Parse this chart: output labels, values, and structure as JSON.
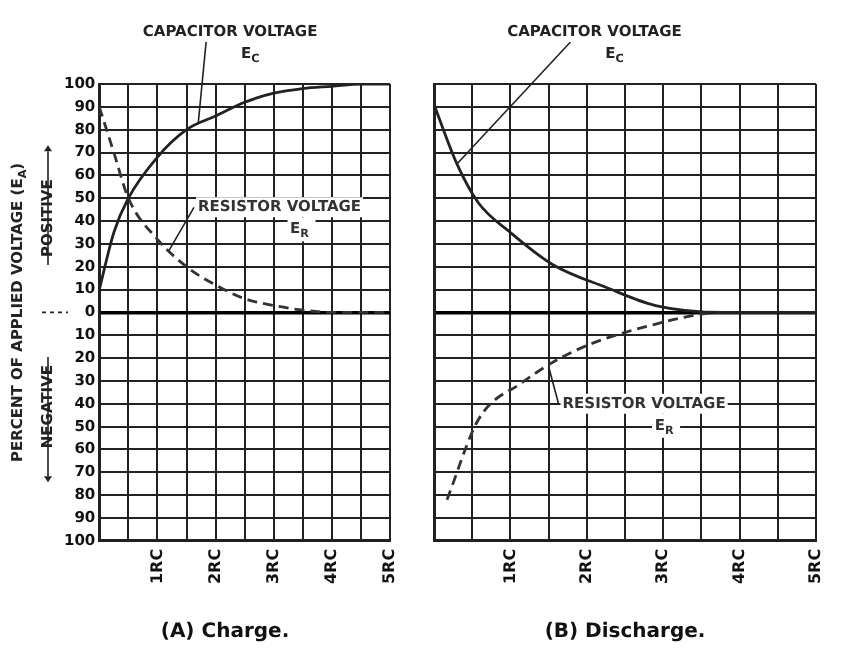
{
  "chart_data": [
    {
      "type": "line",
      "title": "(A) Charge.",
      "ylabel": "PERCENT OF APPLIED VOLTAGE (E$_{A}$)",
      "annotations": [
        "POSITIVE",
        "NEGATIVE"
      ],
      "x": [
        0,
        0.25,
        0.5,
        1,
        1.5,
        2,
        2.5,
        3,
        3.5,
        4,
        4.5,
        5
      ],
      "series": [
        {
          "name": "CAPACITOR VOLTAGE E$_{C}$",
          "color": "#222222",
          "line_style": "solid",
          "values": [
            10,
            35,
            50,
            68,
            80,
            86,
            92,
            96,
            98,
            99,
            100,
            100
          ]
        },
        {
          "name": "RESISTOR VOLTAGE E$_{R}$",
          "color": "#333333",
          "line_style": "dashed",
          "values": [
            90,
            70,
            50,
            32,
            20,
            12,
            6,
            3,
            1,
            0,
            0,
            0
          ]
        }
      ],
      "xlim": [
        0,
        5
      ],
      "xticks": [
        {
          "value": 0,
          "label": null
        },
        {
          "value": 0.5,
          "label": null
        },
        {
          "value": 1,
          "label": "1RC"
        },
        {
          "value": 1.5,
          "label": null
        },
        {
          "value": 2,
          "label": "2RC"
        },
        {
          "value": 2.5,
          "label": null
        },
        {
          "value": 3,
          "label": "3RC"
        },
        {
          "value": 3.5,
          "label": null
        },
        {
          "value": 4,
          "label": "4RC"
        },
        {
          "value": 4.5,
          "label": null
        },
        {
          "value": 5,
          "label": "5RC"
        }
      ],
      "ylim": [
        -100,
        100
      ],
      "yticks": [
        {
          "value": -100,
          "label": "100"
        },
        {
          "value": -90,
          "label": "90"
        },
        {
          "value": -80,
          "label": "80"
        },
        {
          "value": -70,
          "label": "70"
        },
        {
          "value": -60,
          "label": "60"
        },
        {
          "value": -50,
          "label": "50"
        },
        {
          "value": -40,
          "label": "40"
        },
        {
          "value": -30,
          "label": "30"
        },
        {
          "value": -20,
          "label": "20"
        },
        {
          "value": -10,
          "label": "10"
        },
        0,
        10,
        20,
        30,
        40,
        50,
        60,
        70,
        80,
        90,
        100
      ],
      "grid": true,
      "marker": "none",
      "legend": false
    },
    {
      "type": "line",
      "title": "(B) Discharge.",
      "x": [
        0,
        0.3,
        0.58,
        1,
        1.55,
        2.25,
        2.9,
        3.8,
        5
      ],
      "series": [
        {
          "name": "CAPACITOR VOLTAGE E$_{C}$",
          "color": "#222222",
          "line_style": "solid",
          "values": [
            91,
            65,
            48,
            35,
            21,
            11,
            3,
            0,
            0
          ]
        },
        {
          "name": "RESISTOR VOLTAGE E$_{R}$",
          "color": "#333333",
          "line_style": "dashed",
          "x": [
            0.17,
            0.58,
            1.14,
            1.83,
            2.8,
            3.8,
            5
          ],
          "values": [
            -82,
            -47,
            -31,
            -17,
            -6,
            0,
            0
          ]
        }
      ],
      "xlim": [
        0,
        5
      ],
      "xticks": [
        {
          "value": 0,
          "label": null
        },
        {
          "value": 0.5,
          "label": null
        },
        {
          "value": 1,
          "label": "1RC"
        },
        {
          "value": 1.5,
          "label": null
        },
        {
          "value": 2,
          "label": "2RC"
        },
        {
          "value": 2.5,
          "label": null
        },
        {
          "value": 3,
          "label": "3RC"
        },
        {
          "value": 3.5,
          "label": null
        },
        {
          "value": 4,
          "label": "4RC"
        },
        {
          "value": 4.5,
          "label": null
        },
        {
          "value": 5,
          "label": "5RC"
        }
      ],
      "ylim": [
        -100,
        100
      ],
      "yticks": [
        -100,
        -90,
        -80,
        -70,
        -60,
        -50,
        -40,
        -30,
        -20,
        -10,
        0,
        10,
        20,
        30,
        40,
        50,
        60,
        70,
        80,
        90,
        100
      ],
      "tick_labels": "x",
      "grid": true,
      "marker": "none",
      "legend": false
    }
  ]
}
